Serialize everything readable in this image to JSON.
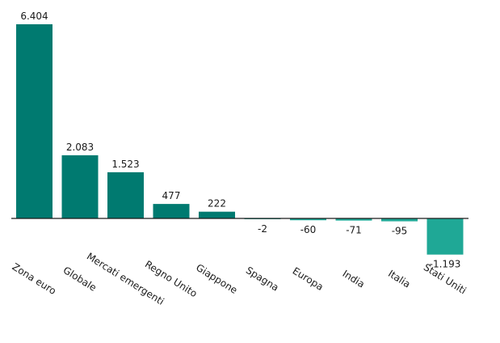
{
  "chart_data": {
    "type": "bar",
    "categories": [
      "Zona euro",
      "Globale",
      "Mercati emergenti",
      "Regno Unito",
      "Giappone",
      "Spagna",
      "Europa",
      "India",
      "Italia",
      "Stati Uniti"
    ],
    "values": [
      6404,
      2083,
      1523,
      477,
      222,
      -2,
      -60,
      -71,
      -95,
      -1193
    ],
    "value_labels": [
      "6.404",
      "2.083",
      "1.523",
      "477",
      "222",
      "-2",
      "-60",
      "-71",
      "-95",
      "-1.193"
    ],
    "title": "",
    "xlabel": "",
    "ylabel": "",
    "ylim": [
      -1200,
      6450
    ],
    "grid": false,
    "legend": "none",
    "colors": {
      "positive": "#007a70",
      "negative": "#1fa896",
      "axis": "#1a1a1a"
    }
  }
}
